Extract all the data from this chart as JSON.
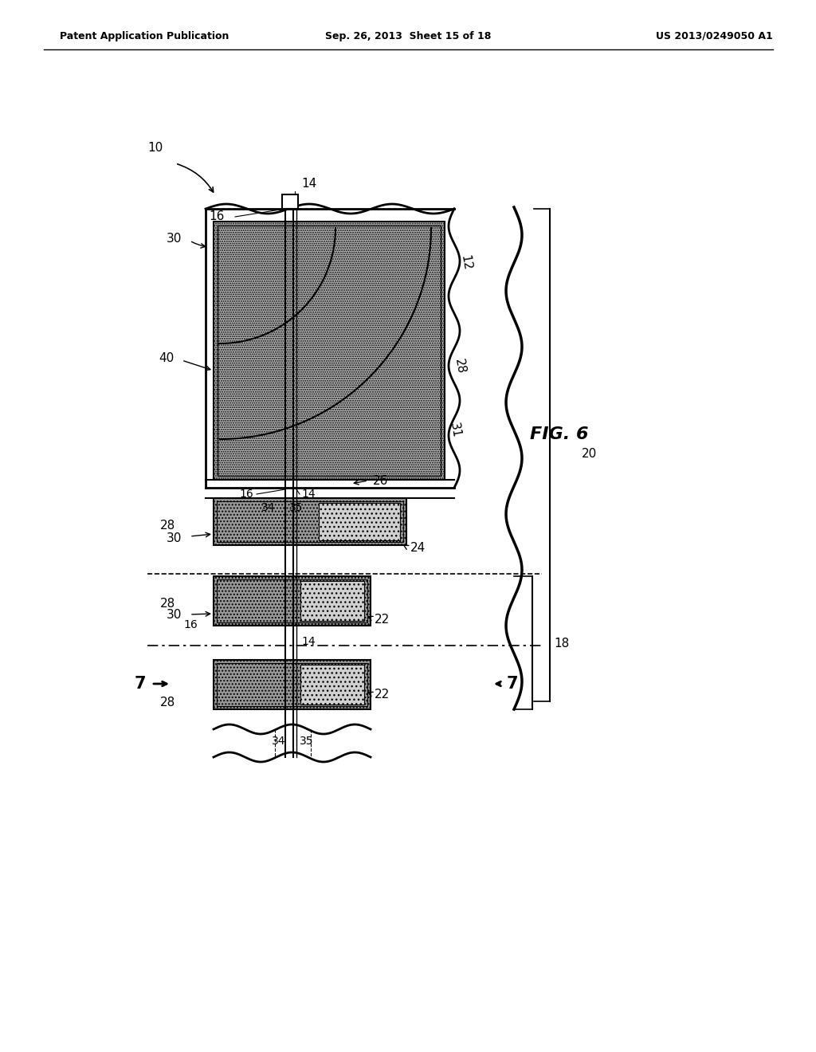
{
  "header_left": "Patent Application Publication",
  "header_center": "Sep. 26, 2013  Sheet 15 of 18",
  "header_right": "US 2013/0249050 A1",
  "bg_color": "#ffffff",
  "fig_label": "FIG. 6",
  "gray_dark": "#aaaaaa",
  "gray_medium": "#bbbbbb",
  "gray_light": "#cccccc",
  "gray_lighter": "#d8d8d8"
}
